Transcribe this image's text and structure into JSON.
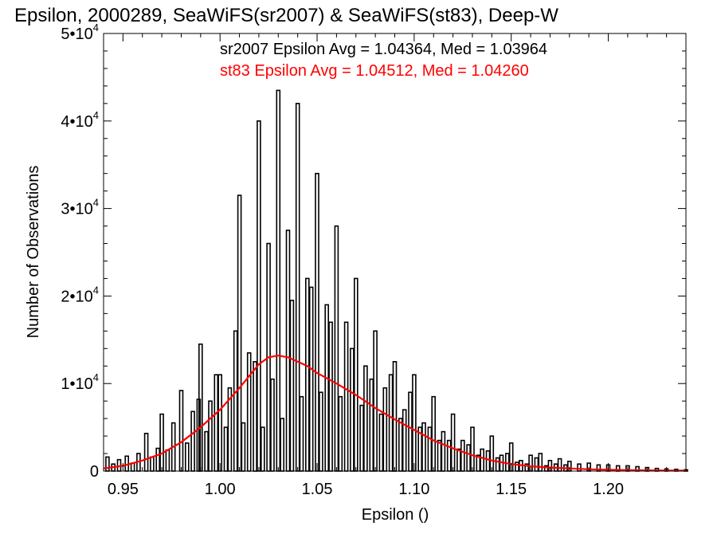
{
  "chart_data": {
    "type": "bar",
    "title": "Epsilon, 2000289, SeaWiFS(sr2007) & SeaWiFS(st83), Deep-W",
    "xlabel": "Epsilon ()",
    "ylabel": "Number of Observations",
    "xlim": [
      0.94,
      1.24
    ],
    "ylim": [
      0,
      50000
    ],
    "x_ticks": [
      0.95,
      1.0,
      1.05,
      1.1,
      1.15,
      1.2
    ],
    "x_tick_labels": [
      "0.95",
      "1.00",
      "1.05",
      "1.10",
      "1.15",
      "1.20"
    ],
    "y_ticks": [
      0,
      10000,
      20000,
      30000,
      40000,
      50000
    ],
    "y_tick_labels": [
      {
        "mantissa": "0",
        "exponent": ""
      },
      {
        "mantissa": "1•10",
        "exponent": "4"
      },
      {
        "mantissa": "2•10",
        "exponent": "4"
      },
      {
        "mantissa": "3•10",
        "exponent": "4"
      },
      {
        "mantissa": "4•10",
        "exponent": "4"
      },
      {
        "mantissa": "5•10",
        "exponent": "4"
      }
    ],
    "annotations": [
      {
        "text": "sr2007 Epsilon Avg = 1.04364, Med = 1.03964",
        "color": "#000000"
      },
      {
        "text": "st83 Epsilon Avg = 1.04512, Med = 1.04260",
        "color": "#ff0000"
      }
    ],
    "series": [
      {
        "name": "sr2007",
        "style": "histogram",
        "color": "#000000",
        "x": [
          0.942,
          0.945,
          0.948,
          0.952,
          0.955,
          0.958,
          0.962,
          0.965,
          0.968,
          0.97,
          0.973,
          0.976,
          0.98,
          0.983,
          0.986,
          0.989,
          0.99,
          0.993,
          0.995,
          0.998,
          1.0,
          1.003,
          1.005,
          1.008,
          1.01,
          1.012,
          1.015,
          1.018,
          1.02,
          1.022,
          1.025,
          1.027,
          1.03,
          1.032,
          1.035,
          1.037,
          1.04,
          1.042,
          1.045,
          1.047,
          1.05,
          1.052,
          1.055,
          1.057,
          1.06,
          1.062,
          1.065,
          1.068,
          1.07,
          1.073,
          1.075,
          1.078,
          1.08,
          1.083,
          1.085,
          1.088,
          1.09,
          1.093,
          1.095,
          1.098,
          1.1,
          1.103,
          1.105,
          1.108,
          1.11,
          1.113,
          1.115,
          1.118,
          1.12,
          1.123,
          1.125,
          1.128,
          1.13,
          1.133,
          1.135,
          1.138,
          1.14,
          1.143,
          1.145,
          1.148,
          1.15,
          1.153,
          1.155,
          1.158,
          1.16,
          1.163,
          1.165,
          1.168,
          1.17,
          1.173,
          1.175,
          1.178,
          1.18,
          1.185,
          1.19,
          1.195,
          1.2,
          1.205,
          1.21,
          1.215,
          1.22,
          1.225,
          1.23,
          1.235,
          1.24
        ],
        "values": [
          1600,
          800,
          1300,
          1700,
          900,
          2000,
          4300,
          1600,
          2600,
          6500,
          2400,
          5500,
          9200,
          3200,
          6800,
          8200,
          14500,
          4500,
          8000,
          11000,
          11000,
          5000,
          9500,
          16000,
          31500,
          5500,
          13500,
          12500,
          40000,
          5000,
          26000,
          10500,
          43500,
          6000,
          27500,
          19500,
          42000,
          8500,
          22000,
          21000,
          34000,
          9000,
          19000,
          17000,
          28000,
          8500,
          17000,
          14000,
          22000,
          7500,
          12000,
          10500,
          16000,
          6500,
          9500,
          11000,
          12500,
          6000,
          7000,
          9000,
          11000,
          5000,
          5500,
          5000,
          8500,
          3500,
          4500,
          3500,
          6500,
          2500,
          3500,
          3000,
          5000,
          1800,
          2500,
          2300,
          4000,
          1500,
          1800,
          2000,
          3200,
          1000,
          1200,
          800,
          1800,
          1500,
          2000,
          600,
          1200,
          800,
          1400,
          700,
          1100,
          800,
          900,
          700,
          700,
          600,
          600,
          500,
          400,
          300,
          250,
          200,
          150
        ]
      },
      {
        "name": "st83",
        "style": "line",
        "color": "#ff0000",
        "x": [
          0.94,
          0.95,
          0.96,
          0.97,
          0.98,
          0.99,
          1.0,
          1.01,
          1.02,
          1.025,
          1.03,
          1.035,
          1.04,
          1.045,
          1.05,
          1.06,
          1.07,
          1.08,
          1.09,
          1.1,
          1.11,
          1.12,
          1.13,
          1.14,
          1.15,
          1.16,
          1.17,
          1.18,
          1.19,
          1.2,
          1.21,
          1.22,
          1.23,
          1.24
        ],
        "values": [
          300,
          600,
          1200,
          2000,
          3300,
          5000,
          7000,
          9500,
          12200,
          13000,
          13200,
          13000,
          12500,
          12000,
          11200,
          10000,
          8700,
          7200,
          5900,
          4700,
          3500,
          2600,
          1800,
          1200,
          800,
          550,
          400,
          300,
          200,
          150,
          100,
          80,
          60,
          50
        ]
      }
    ]
  }
}
